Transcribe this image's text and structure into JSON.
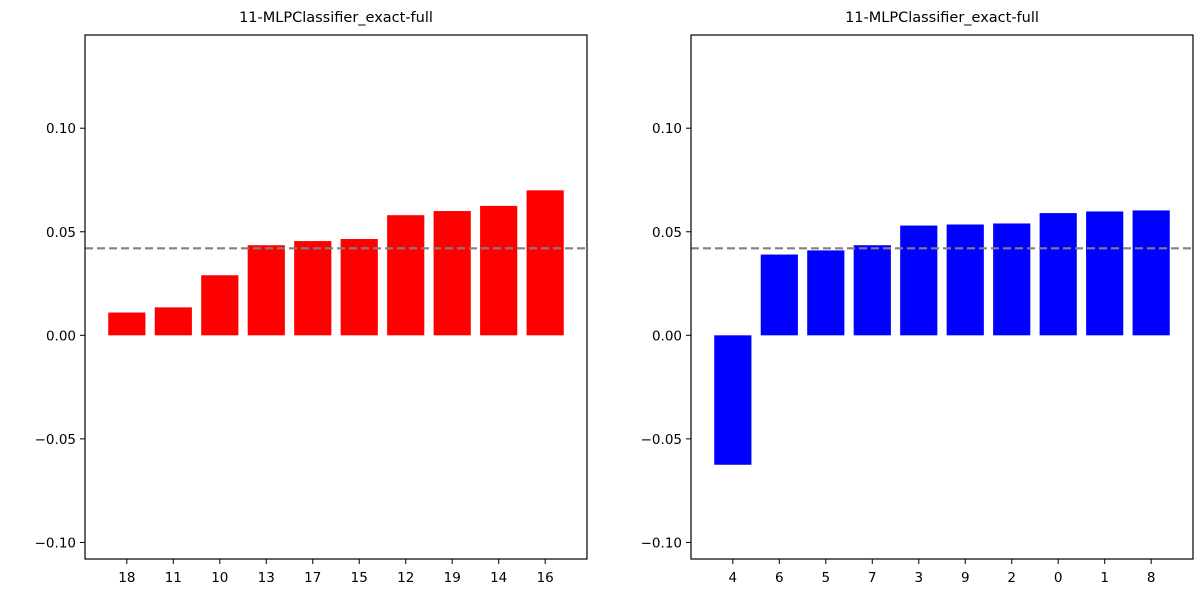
{
  "chart_data": [
    {
      "type": "bar",
      "title": "11-MLPClassifier_exact-full",
      "categories": [
        "18",
        "11",
        "10",
        "13",
        "17",
        "15",
        "12",
        "19",
        "14",
        "16"
      ],
      "values": [
        0.011,
        0.0135,
        0.029,
        0.0435,
        0.0455,
        0.0465,
        0.058,
        0.06,
        0.0625,
        0.07
      ],
      "color": "#ff0000",
      "reference_line": 0.042,
      "reference_color": "#808080",
      "ylim": [
        -0.108,
        0.145
      ],
      "yticks": [
        -0.1,
        -0.05,
        0.0,
        0.05,
        0.1
      ],
      "ytick_labels": [
        "−0.10",
        "−0.05",
        "0.00",
        "0.05",
        "0.10"
      ],
      "xlabel": "",
      "ylabel": "",
      "grid": false
    },
    {
      "type": "bar",
      "title": "11-MLPClassifier_exact-full",
      "categories": [
        "4",
        "6",
        "5",
        "7",
        "3",
        "9",
        "2",
        "0",
        "1",
        "8"
      ],
      "values": [
        -0.0625,
        0.039,
        0.041,
        0.0435,
        0.053,
        0.0535,
        0.054,
        0.059,
        0.0598,
        0.0603
      ],
      "color": "#0000ff",
      "reference_line": 0.042,
      "reference_color": "#808080",
      "ylim": [
        -0.108,
        0.145
      ],
      "yticks": [
        -0.1,
        -0.05,
        0.0,
        0.05,
        0.1
      ],
      "ytick_labels": [
        "−0.10",
        "−0.05",
        "0.00",
        "0.05",
        "0.10"
      ],
      "xlabel": "",
      "ylabel": "",
      "grid": false
    }
  ]
}
